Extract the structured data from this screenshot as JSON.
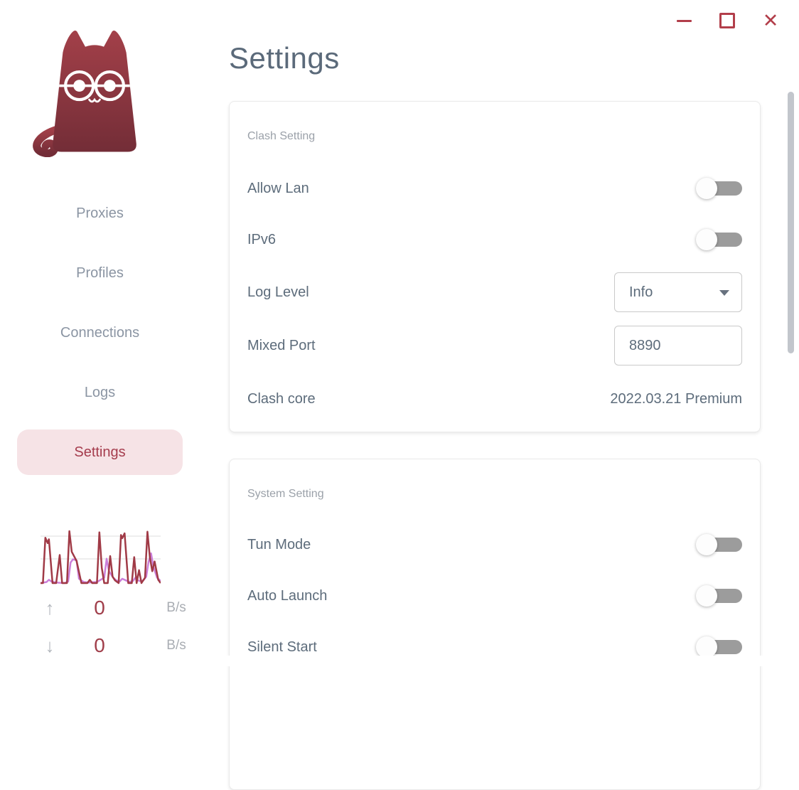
{
  "window_controls": {
    "minimize_icon": "—",
    "maximize_icon": "□",
    "close_icon": "✕",
    "accent_color": "#b23e4a"
  },
  "sidebar": {
    "logo": "clash-cat",
    "nav": [
      {
        "label": "Proxies",
        "active": false
      },
      {
        "label": "Profiles",
        "active": false
      },
      {
        "label": "Connections",
        "active": false
      },
      {
        "label": "Logs",
        "active": false
      },
      {
        "label": "Settings",
        "active": true
      }
    ],
    "traffic": {
      "upload": {
        "icon": "↑",
        "value": "0",
        "unit": "B/s"
      },
      "download": {
        "icon": "↓",
        "value": "0",
        "unit": "B/s"
      },
      "chart": {
        "type": "line",
        "series": [
          {
            "name": "down",
            "color": "#cb7fd9",
            "points": [
              [
                0,
                0
              ],
              [
                5,
                2
              ],
              [
                7,
                6
              ],
              [
                9,
                3
              ],
              [
                13,
                1
              ],
              [
                20,
                0
              ],
              [
                23,
                3
              ],
              [
                25,
                38
              ],
              [
                27,
                44
              ],
              [
                30,
                42
              ],
              [
                32,
                8
              ],
              [
                36,
                2
              ],
              [
                40,
                1
              ],
              [
                47,
                2
              ],
              [
                50,
                6
              ],
              [
                53,
                10
              ],
              [
                55,
                45
              ],
              [
                57,
                22
              ],
              [
                59,
                15
              ],
              [
                61,
                9
              ],
              [
                63,
                5
              ],
              [
                66,
                3
              ],
              [
                68,
                8
              ],
              [
                71,
                5
              ],
              [
                74,
                2
              ],
              [
                77,
                4
              ],
              [
                79,
                10
              ],
              [
                81,
                5
              ],
              [
                84,
                3
              ],
              [
                86,
                6
              ],
              [
                88,
                12
              ],
              [
                90,
                40
              ],
              [
                92,
                55
              ],
              [
                94,
                30
              ],
              [
                97,
                10
              ],
              [
                100,
                4
              ]
            ]
          },
          {
            "name": "up",
            "color": "#a03a46",
            "points": [
              [
                0,
                0
              ],
              [
                2,
                0
              ],
              [
                4,
                84
              ],
              [
                6,
                74
              ],
              [
                7,
                81
              ],
              [
                10,
                0
              ],
              [
                13,
                0
              ],
              [
                16,
                52
              ],
              [
                18,
                0
              ],
              [
                22,
                0
              ],
              [
                24,
                96
              ],
              [
                26,
                58
              ],
              [
                30,
                41
              ],
              [
                34,
                0
              ],
              [
                39,
                0
              ],
              [
                41,
                6
              ],
              [
                43,
                0
              ],
              [
                47,
                0
              ],
              [
                49,
                94
              ],
              [
                51,
                28
              ],
              [
                53,
                0
              ],
              [
                56,
                0
              ],
              [
                58,
                50
              ],
              [
                60,
                12
              ],
              [
                62,
                5
              ],
              [
                65,
                0
              ],
              [
                67,
                89
              ],
              [
                68,
                83
              ],
              [
                70,
                92
              ],
              [
                73,
                0
              ],
              [
                76,
                0
              ],
              [
                78,
                48
              ],
              [
                80,
                0
              ],
              [
                82,
                24
              ],
              [
                84,
                0
              ],
              [
                87,
                10
              ],
              [
                89,
                95
              ],
              [
                91,
                48
              ],
              [
                93,
                22
              ],
              [
                95,
                40
              ],
              [
                98,
                6
              ],
              [
                100,
                0
              ]
            ]
          }
        ]
      }
    }
  },
  "main": {
    "title": "Settings",
    "clash_card": {
      "section_label": "Clash Setting",
      "allow_lan": {
        "label": "Allow Lan",
        "enabled": false
      },
      "ipv6": {
        "label": "IPv6",
        "enabled": false
      },
      "log_level": {
        "label": "Log Level",
        "value": "Info"
      },
      "mixed_port": {
        "label": "Mixed Port",
        "value": "8890"
      },
      "clash_core": {
        "label": "Clash core",
        "value": "2022.03.21 Premium"
      }
    },
    "system_card": {
      "section_label": "System Setting",
      "tun_mode": {
        "label": "Tun Mode",
        "enabled": false
      },
      "auto_launch": {
        "label": "Auto Launch",
        "enabled": false
      },
      "silent_start": {
        "label": "Silent Start",
        "enabled": false
      }
    }
  },
  "colors": {
    "brand": "#a53c4d",
    "nav_inactive": "#8b95a3",
    "active_pill_bg": "#f6e3e6",
    "label_slate": "#5d6c7b",
    "section_gray": "#9ba1a9",
    "toggle_track": "#9c9c9c",
    "chart_up": "#a03a46",
    "chart_down": "#cb7fd9",
    "cat_gradient_top": "#a34049",
    "cat_gradient_bottom": "#732d37"
  }
}
